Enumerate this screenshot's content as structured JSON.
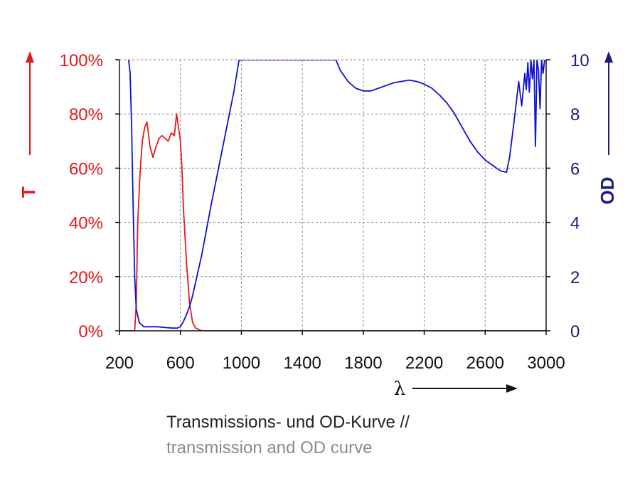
{
  "colors": {
    "transmission": "#e41a1c",
    "od": "#1010d0",
    "od_axis": "#1c1c7a",
    "grid": "#8a8a8a",
    "axis": "#111111"
  },
  "chart_data": {
    "type": "line",
    "title": "",
    "xlabel": "λ",
    "xlim": [
      200,
      3000
    ],
    "x_ticks": [
      "200",
      "600",
      "1000",
      "1400",
      "1800",
      "2200",
      "2600",
      "3000"
    ],
    "x_tick_values": [
      200,
      600,
      1000,
      1400,
      1800,
      2200,
      2600,
      3000
    ],
    "y_left": {
      "label": "T",
      "lim": [
        0,
        100
      ],
      "ticks": [
        "0%",
        "20%",
        "40%",
        "60%",
        "80%",
        "100%"
      ],
      "tick_values": [
        0,
        20,
        40,
        60,
        80,
        100
      ]
    },
    "y_right": {
      "label": "OD",
      "lim": [
        0,
        10
      ],
      "ticks": [
        "0",
        "2",
        "4",
        "6",
        "8",
        "10"
      ],
      "tick_values": [
        0,
        2,
        4,
        6,
        8,
        10
      ]
    },
    "grid": true,
    "series": [
      {
        "axis": "left",
        "x": [
          200,
          280,
          300,
          310,
          320,
          335,
          350,
          365,
          380,
          390,
          400,
          420,
          440,
          460,
          480,
          500,
          520,
          540,
          560,
          575,
          580,
          590,
          600,
          610,
          620,
          640,
          660,
          680,
          700,
          720,
          740,
          760,
          3000
        ],
        "y": [
          0,
          0,
          0,
          10,
          40,
          58,
          70,
          75,
          77,
          73,
          68,
          64,
          68,
          71,
          72,
          71,
          70,
          73,
          72,
          80,
          78,
          74,
          70,
          60,
          45,
          25,
          10,
          3,
          1,
          0.5,
          0,
          0,
          0
        ]
      },
      {
        "axis": "right",
        "x": [
          260,
          270,
          280,
          290,
          300,
          310,
          330,
          360,
          400,
          450,
          500,
          550,
          580,
          600,
          620,
          640,
          660,
          680,
          700,
          720,
          740,
          760,
          800,
          850,
          900,
          950,
          985,
          1620,
          1650,
          1700,
          1750,
          1800,
          1850,
          1900,
          1950,
          2000,
          2050,
          2100,
          2150,
          2200,
          2250,
          2300,
          2350,
          2400,
          2450,
          2500,
          2550,
          2600,
          2650,
          2700,
          2740,
          2760,
          2780,
          2800,
          2820,
          2840,
          2860,
          2870,
          2880,
          2890,
          2900,
          2910,
          2920,
          2930,
          2940,
          2950,
          2960,
          2970,
          2980,
          2990,
          3000
        ],
        "y": [
          10,
          9.5,
          7.5,
          4.5,
          2,
          0.8,
          0.3,
          0.15,
          0.15,
          0.15,
          0.12,
          0.1,
          0.1,
          0.15,
          0.35,
          0.6,
          0.9,
          1.3,
          1.8,
          2.3,
          2.8,
          3.4,
          4.6,
          6,
          7.4,
          8.8,
          10,
          10,
          9.6,
          9.2,
          8.95,
          8.85,
          8.85,
          8.95,
          9.05,
          9.15,
          9.2,
          9.25,
          9.2,
          9.1,
          8.95,
          8.7,
          8.4,
          8,
          7.5,
          7,
          6.6,
          6.3,
          6.1,
          5.9,
          5.85,
          6.4,
          7.3,
          8.2,
          9.2,
          8.3,
          9.5,
          8.9,
          9.9,
          8.8,
          10,
          9.3,
          10,
          6.8,
          10,
          9.6,
          8.2,
          10,
          9.5,
          10,
          10
        ]
      }
    ]
  },
  "caption": {
    "line1": "Transmissions- und OD-Kurve //",
    "line2": "transmission and OD curve"
  }
}
